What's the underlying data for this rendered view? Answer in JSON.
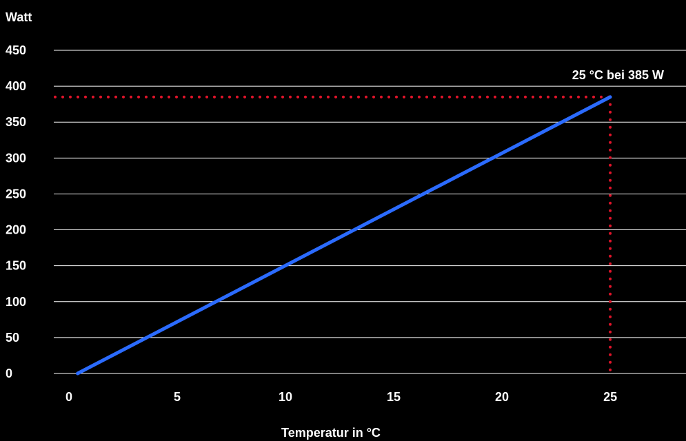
{
  "chart_data": {
    "type": "line",
    "title": "",
    "xlabel": "Temperatur in °C",
    "ylabel": "Watt",
    "xlim": [
      -0.7,
      28.5
    ],
    "ylim": [
      0,
      450
    ],
    "xticks": [
      0,
      5,
      10,
      15,
      20,
      25
    ],
    "yticks": [
      0,
      50,
      100,
      150,
      200,
      250,
      300,
      350,
      400,
      450
    ],
    "grid": "horizontal",
    "series": [
      {
        "x": [
          0.4,
          25
        ],
        "y": [
          0,
          385
        ],
        "color": "#2b6bff"
      }
    ],
    "annotation": {
      "text": "25 °C bei 385 W",
      "x": 25,
      "y": 385,
      "color": "#e0142a"
    }
  }
}
